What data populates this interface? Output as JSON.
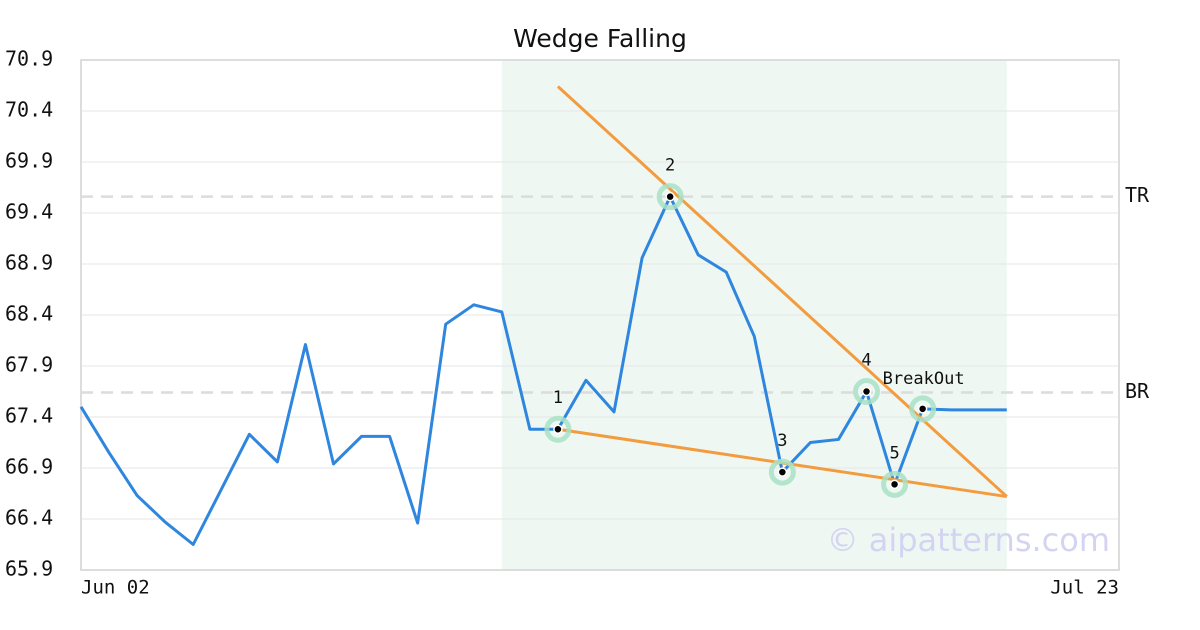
{
  "chart_data": {
    "type": "line",
    "title": "Wedge Falling",
    "watermark": "© aipatterns.com",
    "categories": [
      "Jun 02",
      null,
      null,
      null,
      null,
      null,
      null,
      null,
      null,
      null,
      null,
      null,
      null,
      null,
      null,
      null,
      null,
      null,
      null,
      null,
      null,
      null,
      null,
      null,
      null,
      null,
      null,
      null,
      null,
      null,
      null,
      null,
      null,
      null,
      null,
      null,
      null,
      "Jul 23"
    ],
    "values": [
      67.5,
      67.05,
      66.63,
      66.37,
      66.15,
      66.69,
      67.23,
      66.96,
      68.11,
      66.94,
      67.21,
      67.21,
      66.36,
      68.31,
      68.5,
      68.43,
      67.28,
      67.28,
      67.76,
      67.45,
      68.96,
      69.56,
      68.99,
      68.82,
      68.19,
      66.86,
      67.15,
      67.18,
      67.65,
      66.74,
      67.48,
      67.47,
      67.47,
      67.47,
      null,
      null,
      null,
      null
    ],
    "color": "#2e86de",
    "ylim": [
      65.9,
      70.9
    ],
    "yticks": [
      65.9,
      66.4,
      66.9,
      67.4,
      67.9,
      68.4,
      68.9,
      69.4,
      69.9,
      70.4,
      70.9
    ],
    "grid": true,
    "highlight_range": [
      15,
      33
    ],
    "highlight_color": "#eff7f3",
    "trendlines": [
      {
        "x": [
          17,
          33
        ],
        "values": [
          70.64,
          66.62
        ],
        "color": "#f39c3f"
      },
      {
        "x": [
          17,
          33
        ],
        "values": [
          67.28,
          66.62
        ],
        "color": "#f39c3f"
      }
    ],
    "reference_lines": [
      {
        "label": "TR",
        "value": 69.56
      },
      {
        "label": "BR",
        "value": 67.64
      }
    ],
    "pattern_points": [
      {
        "label": "1",
        "index": 17
      },
      {
        "label": "2",
        "index": 21
      },
      {
        "label": "3",
        "index": 25
      },
      {
        "label": "4",
        "index": 28
      },
      {
        "label": "5",
        "index": 29
      },
      {
        "label": "BreakOut",
        "index": 30
      }
    ]
  }
}
